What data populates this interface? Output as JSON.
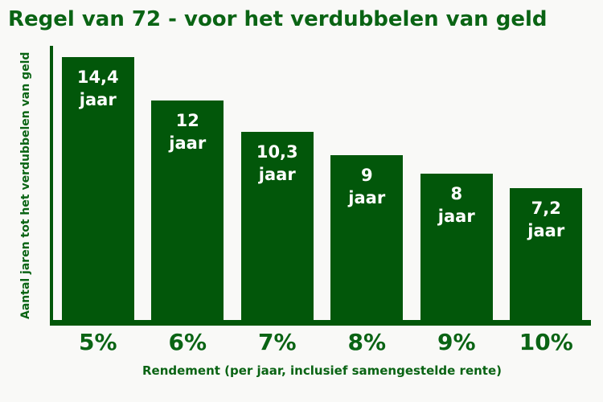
{
  "chart_data": {
    "type": "bar",
    "title": "Regel van 72 - voor het verdubbelen van geld",
    "xlabel": "Rendement (per jaar, inclusief samengestelde rente)",
    "ylabel": "Aantal jaren tot het verdubbelen van geld",
    "categories": [
      "5%",
      "6%",
      "7%",
      "8%",
      "9%",
      "10%"
    ],
    "values": [
      14.4,
      12,
      10.3,
      9,
      8,
      7.2
    ],
    "bar_labels": [
      {
        "value": "14,4",
        "unit": "jaar"
      },
      {
        "value": "12",
        "unit": "jaar"
      },
      {
        "value": "10,3",
        "unit": "jaar"
      },
      {
        "value": "9",
        "unit": "jaar"
      },
      {
        "value": "8",
        "unit": "jaar"
      },
      {
        "value": "7,2",
        "unit": "jaar"
      }
    ],
    "ylim": [
      0,
      15
    ],
    "grid": false,
    "legend": false,
    "colors": {
      "bar": "#02570a",
      "text": "#0a6414",
      "bar_label": "#ffffff",
      "background": "#f9f9f7"
    }
  }
}
